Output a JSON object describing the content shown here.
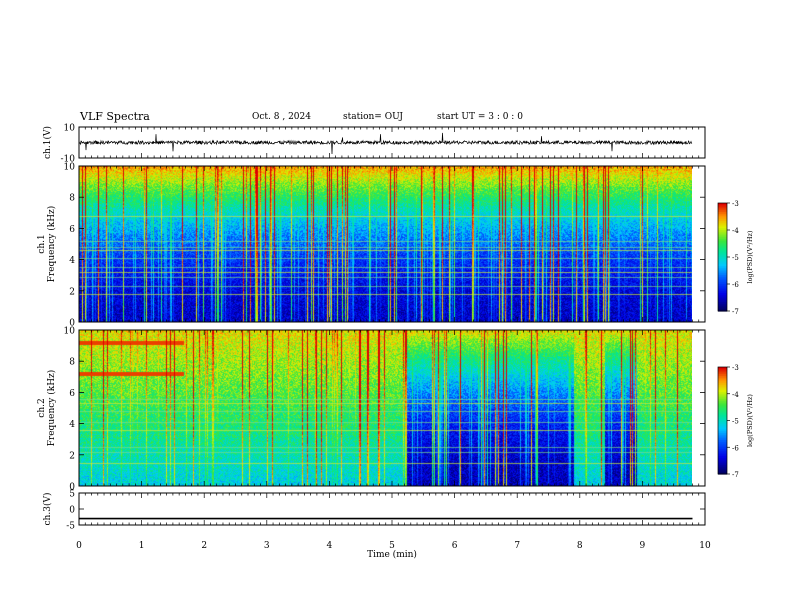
{
  "header": {
    "title": "VLF Spectra",
    "date": "Oct. 8 , 2024",
    "station": "station= OUJ",
    "start_ut": "start UT =  3 : 0 : 0"
  },
  "chart_data": [
    {
      "type": "line",
      "panel": "ch1-waveform",
      "ylabel": "ch.1(V)",
      "ylim": [
        -10,
        10
      ],
      "yticks": [
        10,
        -10
      ],
      "xlim": [
        0,
        10
      ],
      "series": [
        {
          "x": [
            0,
            9.8
          ],
          "y": [
            0,
            0
          ]
        }
      ]
    },
    {
      "type": "heatmap",
      "panel": "ch1-spectrogram",
      "ylabel": "ch.1\nFrequency (kHz)",
      "ylim": [
        0,
        10
      ],
      "yticks": [
        0,
        2,
        4,
        6,
        8,
        10
      ],
      "xlim": [
        0,
        10
      ],
      "data_xmax": 9.8,
      "colorbar": {
        "label": "log(PSD)(V²/Hz)",
        "range": [
          -7,
          -3
        ],
        "ticks": [
          -3,
          -4,
          -5,
          -6,
          -7
        ]
      }
    },
    {
      "type": "heatmap",
      "panel": "ch2-spectrogram",
      "ylabel": "ch.2\nFrequency (kHz)",
      "ylim": [
        0,
        10
      ],
      "yticks": [
        0,
        2,
        4,
        6,
        8,
        10
      ],
      "xlim": [
        0,
        10
      ],
      "data_xmax": 9.8,
      "low_activity_intervals_min": [
        [
          5.2,
          7.9
        ],
        [
          8.4,
          8.9
        ]
      ],
      "colorbar": {
        "label": "log(PSD)(V²/Hz)",
        "range": [
          -7,
          -3
        ],
        "ticks": [
          -3,
          -4,
          -5,
          -6,
          -7
        ]
      }
    },
    {
      "type": "line",
      "panel": "ch3-waveform",
      "ylabel": "ch.3(V)",
      "ylim": [
        -5,
        5
      ],
      "yticks": [
        5,
        0,
        -5
      ],
      "xlim": [
        0,
        10
      ],
      "xlabel": "Time (min)",
      "xticks": [
        0,
        1,
        2,
        3,
        4,
        5,
        6,
        7,
        8,
        9,
        10
      ],
      "series": [
        {
          "x": [
            0,
            9.8
          ],
          "y": [
            -3,
            -3
          ]
        }
      ]
    }
  ],
  "colors": {
    "background": "#ffffff",
    "axis": "#000000",
    "waveform": "#000000"
  }
}
